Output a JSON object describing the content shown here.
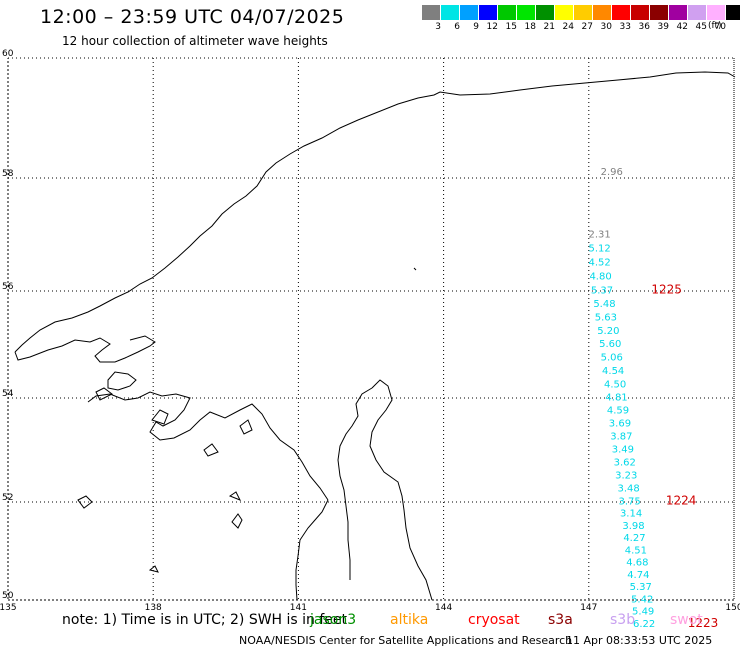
{
  "header": {
    "title": "12:00 – 23:59 UTC 04/07/2025",
    "subtitle": "12 hour collection of altimeter wave heights"
  },
  "legend": {
    "unit": "(ft)",
    "bins": [
      {
        "label": "3",
        "color": "#7f7f7f"
      },
      {
        "label": "6",
        "color": "#00e5e5"
      },
      {
        "label": "9",
        "color": "#00a0ff"
      },
      {
        "label": "12",
        "color": "#0000ff"
      },
      {
        "label": "15",
        "color": "#00c800"
      },
      {
        "label": "18",
        "color": "#00e600"
      },
      {
        "label": "21",
        "color": "#009000"
      },
      {
        "label": "24",
        "color": "#ffff00"
      },
      {
        "label": "27",
        "color": "#ffcc00"
      },
      {
        "label": "30",
        "color": "#ff8800"
      },
      {
        "label": "33",
        "color": "#ff0000"
      },
      {
        "label": "36",
        "color": "#c80000"
      },
      {
        "label": "39",
        "color": "#8b0000"
      },
      {
        "label": "42",
        "color": "#a000a0"
      },
      {
        "label": "45",
        "color": "#d0a0f0"
      },
      {
        "label": "70",
        "color": "#ffb0ff"
      },
      {
        "label": "",
        "color": "#000000"
      }
    ]
  },
  "axes": {
    "lon_ticks": [
      "135",
      "138",
      "141",
      "144",
      "147",
      "150"
    ],
    "lat_ticks": [
      "50",
      "52",
      "54",
      "56",
      "58",
      "60"
    ],
    "lon_range": [
      135,
      150
    ],
    "lat_range": [
      50,
      60
    ]
  },
  "track": {
    "grey_readings": [
      {
        "lon": 147.45,
        "lat": 58.05,
        "value": "2.96"
      },
      {
        "lon": 147.2,
        "lat": 56.95,
        "value": "2.31"
      }
    ],
    "cyan_readings": [
      {
        "lon": 147.2,
        "lat": 56.7,
        "value": "5.12"
      },
      {
        "lon": 147.2,
        "lat": 56.45,
        "value": "4.52"
      },
      {
        "lon": 147.22,
        "lat": 56.2,
        "value": "4.80"
      },
      {
        "lon": 147.25,
        "lat": 55.95,
        "value": "5.37"
      },
      {
        "lon": 147.3,
        "lat": 55.7,
        "value": "5.48"
      },
      {
        "lon": 147.33,
        "lat": 55.45,
        "value": "5.63"
      },
      {
        "lon": 147.38,
        "lat": 55.2,
        "value": "5.20"
      },
      {
        "lon": 147.42,
        "lat": 54.95,
        "value": "5.60"
      },
      {
        "lon": 147.45,
        "lat": 54.7,
        "value": "5.06"
      },
      {
        "lon": 147.48,
        "lat": 54.45,
        "value": "4.54"
      },
      {
        "lon": 147.52,
        "lat": 54.2,
        "value": "4.50"
      },
      {
        "lon": 147.55,
        "lat": 53.95,
        "value": "4.81"
      },
      {
        "lon": 147.58,
        "lat": 53.7,
        "value": "4.59"
      },
      {
        "lon": 147.62,
        "lat": 53.45,
        "value": "3.69"
      },
      {
        "lon": 147.65,
        "lat": 53.2,
        "value": "3.87"
      },
      {
        "lon": 147.68,
        "lat": 52.95,
        "value": "3.49"
      },
      {
        "lon": 147.72,
        "lat": 52.7,
        "value": "3.62"
      },
      {
        "lon": 147.75,
        "lat": 52.45,
        "value": "3.23"
      },
      {
        "lon": 147.8,
        "lat": 52.2,
        "value": "3.48"
      },
      {
        "lon": 147.82,
        "lat": 51.95,
        "value": "3.75"
      },
      {
        "lon": 147.85,
        "lat": 51.7,
        "value": "3.14"
      },
      {
        "lon": 147.9,
        "lat": 51.45,
        "value": "3.98"
      },
      {
        "lon": 147.92,
        "lat": 51.2,
        "value": "4.27"
      },
      {
        "lon": 147.95,
        "lat": 50.95,
        "value": "4.51"
      },
      {
        "lon": 147.98,
        "lat": 50.7,
        "value": "4.68"
      },
      {
        "lon": 148.0,
        "lat": 50.45,
        "value": "4.74"
      },
      {
        "lon": 148.05,
        "lat": 50.2,
        "value": "5.37"
      },
      {
        "lon": 148.08,
        "lat": 49.95,
        "value": "5.42"
      },
      {
        "lon": 148.1,
        "lat": 49.7,
        "value": "5.49"
      },
      {
        "lon": 148.12,
        "lat": 49.45,
        "value": "6.22"
      }
    ],
    "time_labels": [
      {
        "lon": 148.5,
        "lat": 55.95,
        "text": "1225"
      },
      {
        "lon": 148.8,
        "lat": 51.95,
        "text": "1224"
      },
      {
        "lon": 149.25,
        "lat": 49.45,
        "text": "1223"
      }
    ],
    "time_label_color": "#d00000",
    "grey_color": "#7f7f7f",
    "cyan_color": "#00d8e8"
  },
  "footer": {
    "note": "note:  1) Time is in UTC;  2) SWH is in feet",
    "satellites": [
      {
        "name": "jason3",
        "color": "#009000"
      },
      {
        "name": "altika",
        "color": "#ff9900"
      },
      {
        "name": "cryosat",
        "color": "#ff0000"
      },
      {
        "name": "s3a",
        "color": "#8b0000"
      },
      {
        "name": "s3b",
        "color": "#c8a0f0"
      },
      {
        "name": "swot",
        "color": "#ffa0e0"
      }
    ],
    "credit": "NOAA/NESDIS Center for Satellite Applications and Research",
    "timestamp": "11 Apr 08:33:53 UTC 2025"
  }
}
